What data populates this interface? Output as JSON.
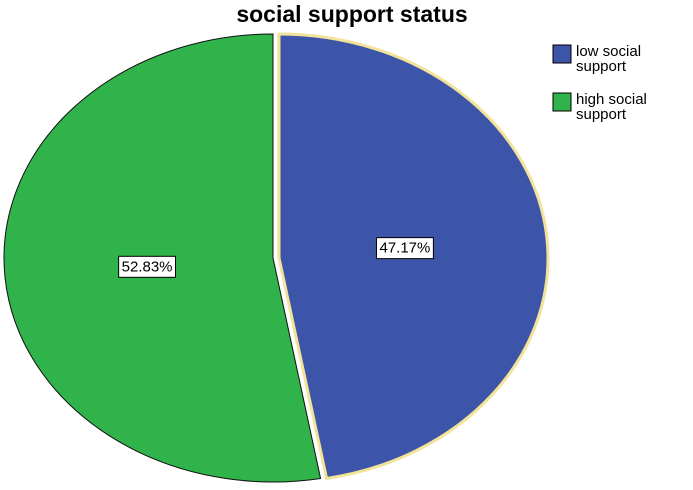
{
  "chart_data": {
    "type": "pie",
    "title": "social support status",
    "series": [
      {
        "name": "low social support",
        "color": "#3d55a8",
        "values": [
          47.17
        ],
        "value_labels": [
          "47.17%"
        ]
      },
      {
        "name": "high social support",
        "color": "#2fb34a",
        "values": [
          52.83
        ],
        "value_labels": [
          "52.83%"
        ]
      }
    ]
  }
}
